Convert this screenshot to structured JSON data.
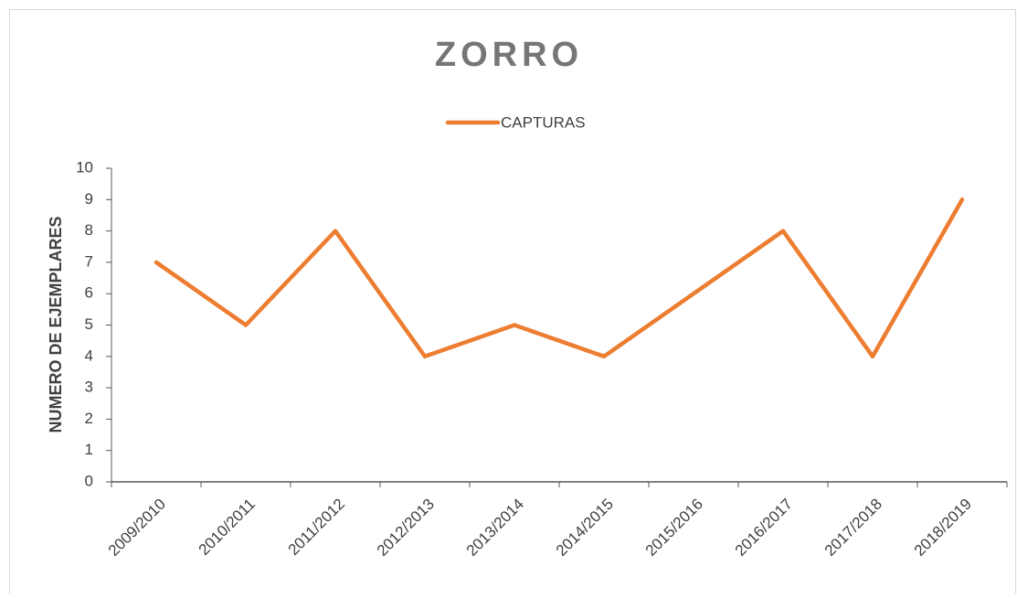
{
  "chart_data": {
    "type": "line",
    "title": "ZORRO",
    "ylabel": "NUMERO DE EJEMPLARES",
    "categories": [
      "2009/2010",
      "2010/2011",
      "2011/2012",
      "2012/2013",
      "2013/2014",
      "2014/2015",
      "2015/2016",
      "2016/2017",
      "2017/2018",
      "2018/2019"
    ],
    "series": [
      {
        "name": "CAPTURAS",
        "color": "#ED7D31",
        "values": [
          7,
          5,
          8,
          4,
          5,
          4,
          6,
          8,
          4,
          9
        ]
      }
    ],
    "ylim": [
      0,
      10
    ],
    "yticks": [
      0,
      1,
      2,
      3,
      4,
      5,
      6,
      7,
      8,
      9,
      10
    ],
    "grid": false,
    "legend": "top"
  }
}
